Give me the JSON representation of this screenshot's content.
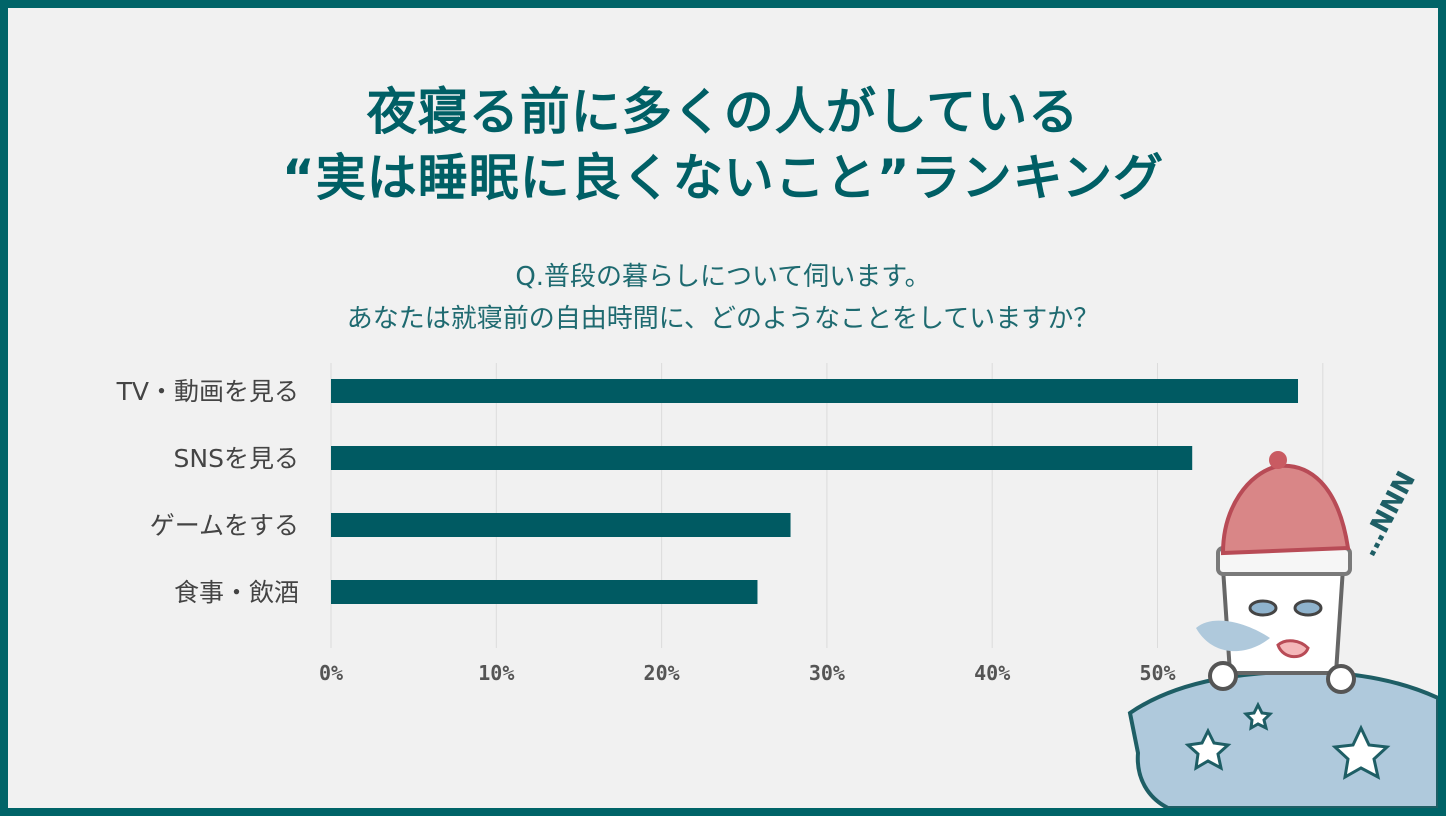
{
  "title_lines": [
    "夜寝る前に多くの人がしている",
    "“実は睡眠に良くないこと”ランキング"
  ],
  "question_lines": [
    "Q.普段の暮らしについて伺います。",
    "あなたは就寝前の自由時間に、どのようなことをしていますか？"
  ],
  "colors": {
    "frame": "#006468",
    "background": "#f1f1f1",
    "bar": "#005a62",
    "title": "#005f65",
    "question": "#1e6a70",
    "grid": "#dcdcdc",
    "tick_text": "#555555",
    "category_text": "#444444"
  },
  "chart_data": {
    "type": "bar",
    "orientation": "horizontal",
    "categories": [
      "TV・動画を見る",
      "SNSを見る",
      "ゲームをする",
      "食事・飲酒"
    ],
    "values": [
      58.5,
      52.1,
      27.8,
      25.8
    ],
    "xlim": [
      0,
      60
    ],
    "x_ticks": [
      0,
      10,
      20,
      30,
      40,
      50
    ],
    "x_tick_labels": [
      "0%",
      "10%",
      "20%",
      "30%",
      "40%",
      "50%"
    ],
    "grid": true,
    "legend": "none"
  },
  "illustration": {
    "name": "sleeping-character-icon",
    "snore_text": "…NNN"
  }
}
